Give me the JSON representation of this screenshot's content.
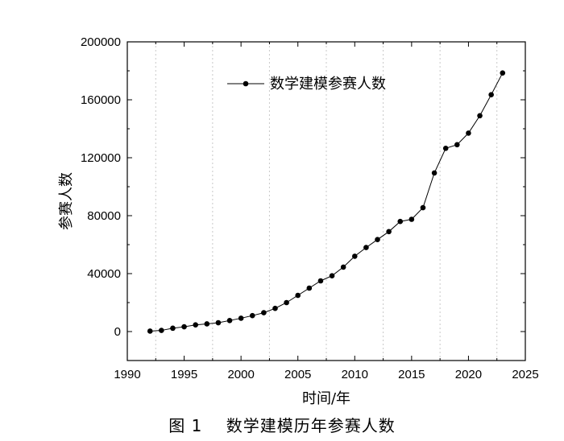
{
  "chart_data": {
    "type": "line",
    "title": "",
    "xlabel": "时间/年",
    "ylabel": "参赛人数",
    "xlim": [
      1990,
      2025
    ],
    "ylim": [
      -20000,
      200000
    ],
    "x_ticks": [
      1990,
      1995,
      2000,
      2005,
      2010,
      2015,
      2020,
      2025
    ],
    "y_ticks": [
      0,
      40000,
      80000,
      120000,
      160000,
      200000
    ],
    "grid": "vertical dotted at minor x ticks",
    "legend_position": "top-center",
    "series": [
      {
        "name": "数学建模参赛人数",
        "color": "#000000",
        "marker": "filled-circle",
        "x": [
          1992,
          1993,
          1994,
          1995,
          1996,
          1997,
          1998,
          1999,
          2000,
          2001,
          2002,
          2003,
          2004,
          2005,
          2006,
          2007,
          2008,
          2009,
          2010,
          2011,
          2012,
          2013,
          2014,
          2015,
          2016,
          2017,
          2018,
          2019,
          2020,
          2021,
          2022,
          2023
        ],
        "values": [
          300,
          800,
          2300,
          3300,
          4600,
          5300,
          6100,
          7600,
          9200,
          11000,
          13000,
          16000,
          20000,
          25000,
          30000,
          35000,
          38500,
          44500,
          52000,
          58000,
          63500,
          69000,
          76000,
          77500,
          85500,
          109500,
          126500,
          129000,
          137000,
          149000,
          163500,
          178500
        ]
      }
    ]
  },
  "caption": {
    "label": "图 1",
    "text": "数学建模历年参赛人数"
  }
}
